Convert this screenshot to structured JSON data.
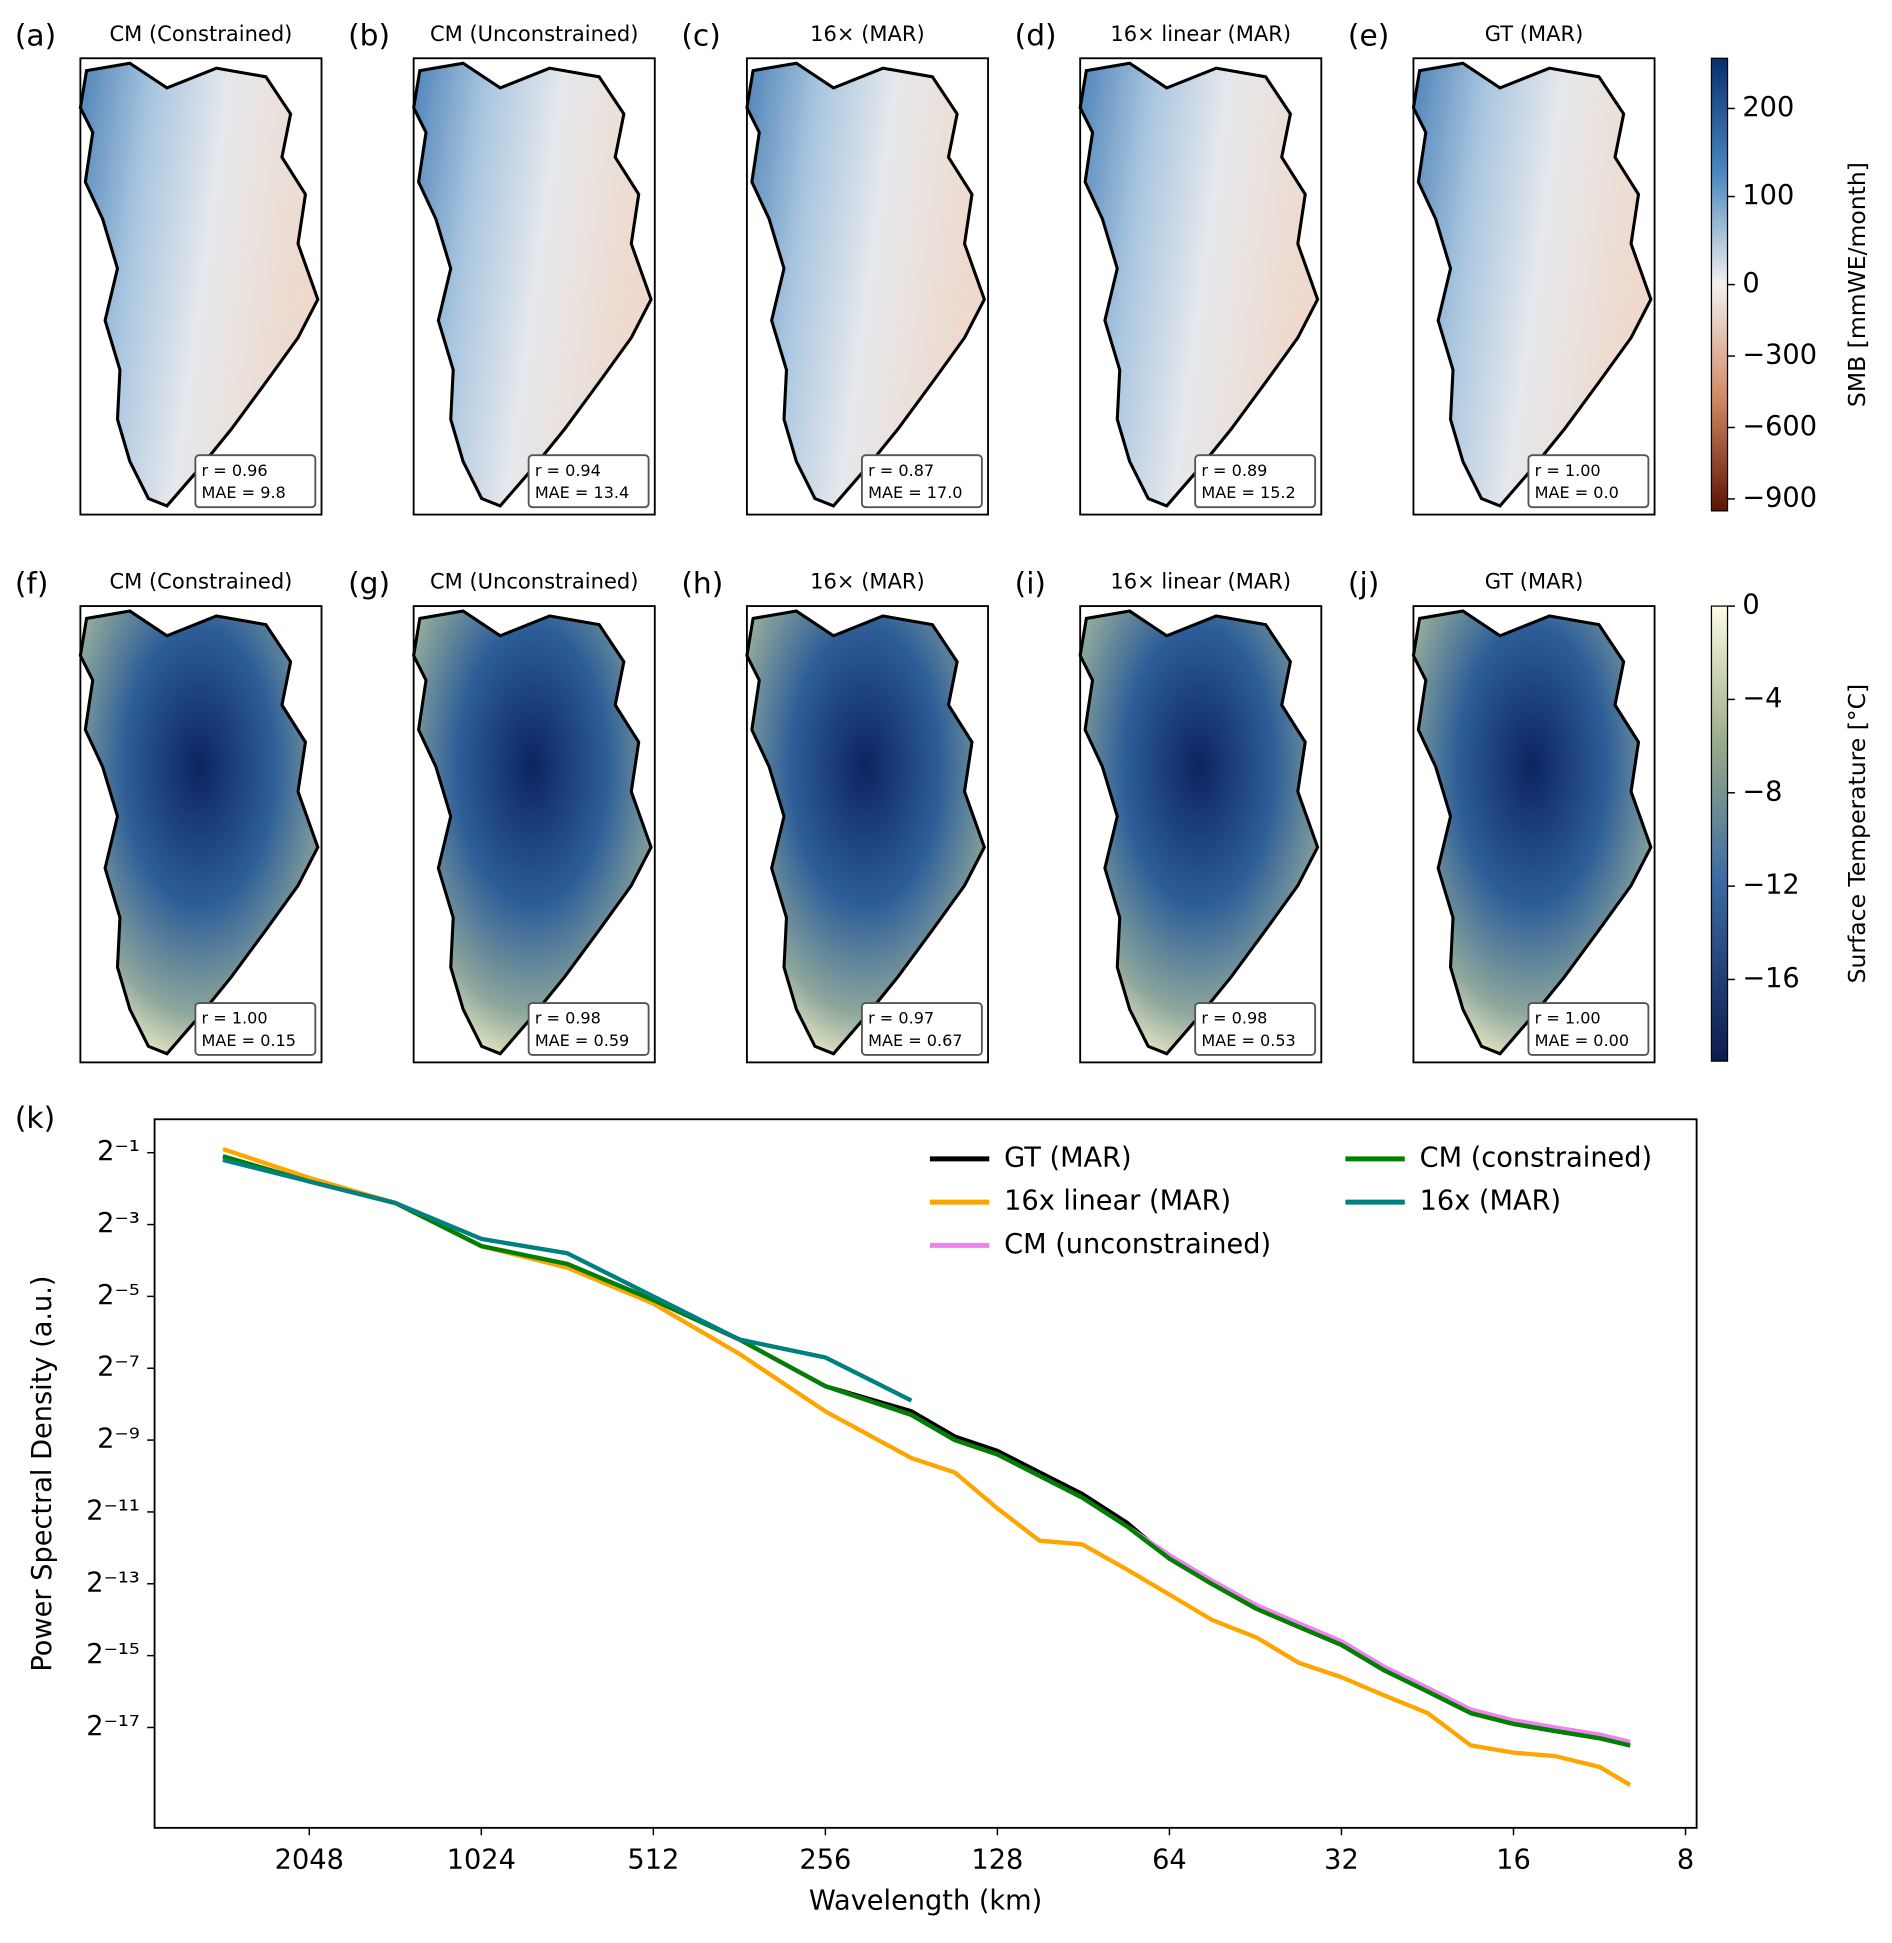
{
  "panels": [
    {
      "label": "(a)",
      "title": "CM (Constrained)",
      "stats": [
        "r = 0.96",
        "MAE = 9.8"
      ],
      "field": "smb"
    },
    {
      "label": "(b)",
      "title": "CM (Unconstrained)",
      "stats": [
        "r = 0.94",
        "MAE = 13.4"
      ],
      "field": "smb"
    },
    {
      "label": "(c)",
      "title": "16× (MAR)",
      "stats": [
        "r = 0.87",
        "MAE = 17.0"
      ],
      "field": "smb"
    },
    {
      "label": "(d)",
      "title": "16× linear (MAR)",
      "stats": [
        "r = 0.89",
        "MAE = 15.2"
      ],
      "field": "smb"
    },
    {
      "label": "(e)",
      "title": "GT (MAR)",
      "stats": [
        "r = 1.00",
        "MAE = 0.0"
      ],
      "field": "smb"
    },
    {
      "label": "(f)",
      "title": "CM (Constrained)",
      "stats": [
        "r = 1.00",
        "MAE = 0.15"
      ],
      "field": "temp"
    },
    {
      "label": "(g)",
      "title": "CM (Unconstrained)",
      "stats": [
        "r = 0.98",
        "MAE = 0.59"
      ],
      "field": "temp"
    },
    {
      "label": "(h)",
      "title": "16× (MAR)",
      "stats": [
        "r = 0.97",
        "MAE = 0.67"
      ],
      "field": "temp"
    },
    {
      "label": "(i)",
      "title": "16× linear (MAR)",
      "stats": [
        "r = 0.98",
        "MAE = 0.53"
      ],
      "field": "temp"
    },
    {
      "label": "(j)",
      "title": "GT (MAR)",
      "stats": [
        "r = 1.00",
        "MAE = 0.00"
      ],
      "field": "temp"
    }
  ],
  "colorbars": [
    {
      "field": "smb",
      "label": "SMB [mmWE/month]",
      "norm": "two-slope",
      "clim": [
        -950,
        257
      ],
      "ticks": [
        200,
        100,
        0,
        {
          "value": -300,
          "label": "−300"
        },
        {
          "value": -600,
          "label": "−600"
        },
        {
          "value": -900,
          "label": "−900"
        }
      ]
    },
    {
      "field": "temp",
      "label": "Surface Temperature [°C]",
      "norm": "linear",
      "clim": [
        -19.5,
        0
      ],
      "ticks": [
        0,
        {
          "value": -4,
          "label": "−4"
        },
        {
          "value": -8,
          "label": "−8"
        },
        {
          "value": -12,
          "label": "−12"
        },
        {
          "value": -16,
          "label": "−16"
        }
      ]
    }
  ],
  "chart_data": {
    "type": "line",
    "panel_label": "(k)",
    "x_label": "Wavelength (km)",
    "y_label": "Power Spectral Density (a.u.)",
    "xscale": "log",
    "yscale": "log",
    "grid": false,
    "legend": "upper right",
    "xlim": [
      3820,
      7.65
    ],
    "xticks": [
      2048,
      1024,
      512,
      256,
      128,
      64,
      32,
      16,
      8
    ],
    "ylim": [
      1.1e-06,
      0.953
    ],
    "yticks": [
      {
        "value": 0.5,
        "label": "2⁻¹"
      },
      {
        "value": 0.125,
        "label": "2⁻³"
      },
      {
        "value": 0.03125,
        "label": "2⁻⁵"
      },
      {
        "value": 0.0078125,
        "label": "2⁻⁷"
      },
      {
        "value": 0.001953125,
        "label": "2⁻⁹"
      },
      {
        "value": 0.00048828125,
        "label": "2⁻¹¹"
      },
      {
        "value": 0.0001220703125,
        "label": "2⁻¹³"
      },
      {
        "value": 3.0517578125e-05,
        "label": "2⁻¹⁵"
      },
      {
        "value": 7.62939453125e-06,
        "label": "2⁻¹⁷"
      }
    ],
    "x": [
      2900,
      2048,
      1448,
      1024,
      724,
      512,
      362,
      256,
      181,
      152,
      128,
      108,
      91,
      76,
      64,
      54,
      45,
      38,
      32,
      27,
      22.6,
      19,
      16,
      13.5,
      11.3,
      10
    ],
    "series": [
      {
        "name": "GT (MAR)",
        "color": "#000000",
        "values": [
          0.4665,
          0.2872,
          0.1895,
          0.08247,
          0.05832,
          0.02916,
          0.0136,
          0.005524,
          0.003401,
          0.002093,
          0.001586,
          0.001047,
          0.0006906,
          0.0003966,
          0.0001983,
          0.0001221,
          7.514e-05,
          5.313e-05,
          3.757e-05,
          2.313e-05,
          1.526e-05,
          1.007e-05,
          8.177e-06,
          7.119e-06,
          6.197e-06,
          5.395e-06
        ]
      },
      {
        "name": "16x linear (MAR)",
        "color": "#ffa500",
        "values": [
          0.5359,
          0.3078,
          0.1895,
          0.08247,
          0.05441,
          0.0272,
          0.01031,
          0.003401,
          0.001381,
          0.001047,
          0.0005233,
          0.0002804,
          0.0002616,
          0.0001611,
          9.915e-05,
          6.104e-05,
          4.316e-05,
          2.657e-05,
          2.013e-05,
          1.424e-05,
          1.007e-05,
          5.395e-06,
          4.697e-06,
          4.382e-06,
          3.559e-06,
          2.516e-06
        ]
      },
      {
        "name": "CM (unconstrained)",
        "color": "#ee82ee",
        "values": [
          0.4665,
          0.2872,
          0.1895,
          0.08247,
          0.05832,
          0.02916,
          0.0136,
          0.005524,
          0.003173,
          0.001953,
          0.00148,
          0.0009766,
          0.0006443,
          0.00037,
          0.0002125,
          0.0001308,
          8.054e-05,
          5.695e-05,
          4.027e-05,
          2.479e-05,
          1.635e-05,
          1.079e-05,
          8.764e-06,
          7.629e-06,
          6.642e-06,
          5.782e-06
        ]
      },
      {
        "name": "CM (constrained)",
        "color": "#008000",
        "values": [
          0.4665,
          0.2872,
          0.1895,
          0.08247,
          0.05832,
          0.02916,
          0.0136,
          0.005524,
          0.003173,
          0.001953,
          0.00148,
          0.0009766,
          0.0006443,
          0.00037,
          0.0001983,
          0.0001221,
          7.514e-05,
          5.313e-05,
          3.757e-05,
          2.313e-05,
          1.526e-05,
          1.007e-05,
          8.177e-06,
          7.119e-06,
          6.197e-06,
          5.395e-06
        ]
      },
      {
        "name": "16x (MAR)",
        "color": "#008080",
        "values": [
          0.4353,
          0.2872,
          0.1895,
          0.09473,
          0.07179,
          0.03125,
          0.0136,
          0.009618,
          0.004187,
          null,
          null,
          null,
          null,
          null,
          null,
          null,
          null,
          null,
          null,
          null,
          null,
          null,
          null,
          null,
          null,
          null
        ]
      }
    ]
  }
}
